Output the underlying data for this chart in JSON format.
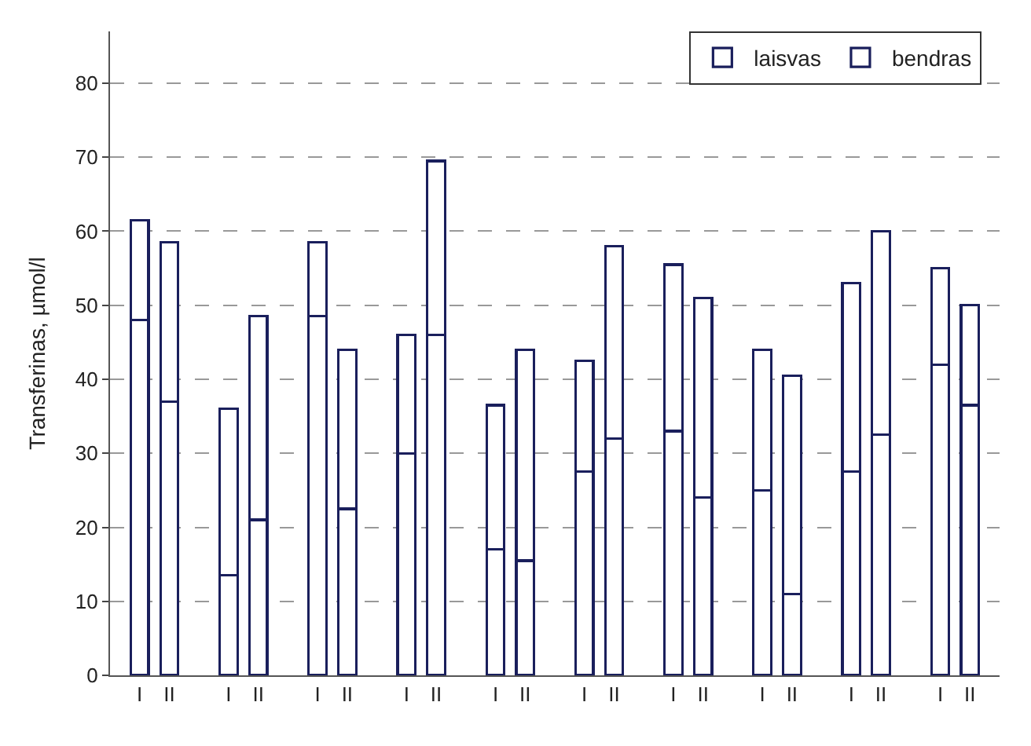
{
  "chart_data": {
    "type": "bar",
    "ylabel": "Transferinas, µmol/l",
    "categories": [
      "I",
      "II",
      "I",
      "II",
      "I",
      "II",
      "I",
      "II",
      "I",
      "II",
      "I",
      "II",
      "I",
      "II",
      "I",
      "II",
      "I",
      "II",
      "I",
      "II"
    ],
    "stacked": true,
    "series": [
      {
        "name": "laisvas",
        "color": "#ffffff",
        "values": [
          48,
          37,
          13.5,
          21,
          48.5,
          22.5,
          30,
          46,
          17,
          15.5,
          27.5,
          32,
          33,
          24,
          25,
          11,
          27.5,
          32.5,
          42,
          36.5
        ]
      },
      {
        "name": "bendras",
        "color": "#ffffff",
        "values": [
          13.5,
          21.5,
          22.5,
          27.5,
          10,
          21.5,
          16,
          23.5,
          19.5,
          28.5,
          15,
          26,
          22.5,
          27,
          19,
          29.5,
          25.5,
          27.5,
          13,
          13.5
        ]
      }
    ],
    "ylim": [
      0,
      87
    ],
    "yticks": [
      0,
      10,
      20,
      30,
      40,
      50,
      60,
      70,
      80
    ],
    "grid": "y",
    "legend": "top right"
  }
}
